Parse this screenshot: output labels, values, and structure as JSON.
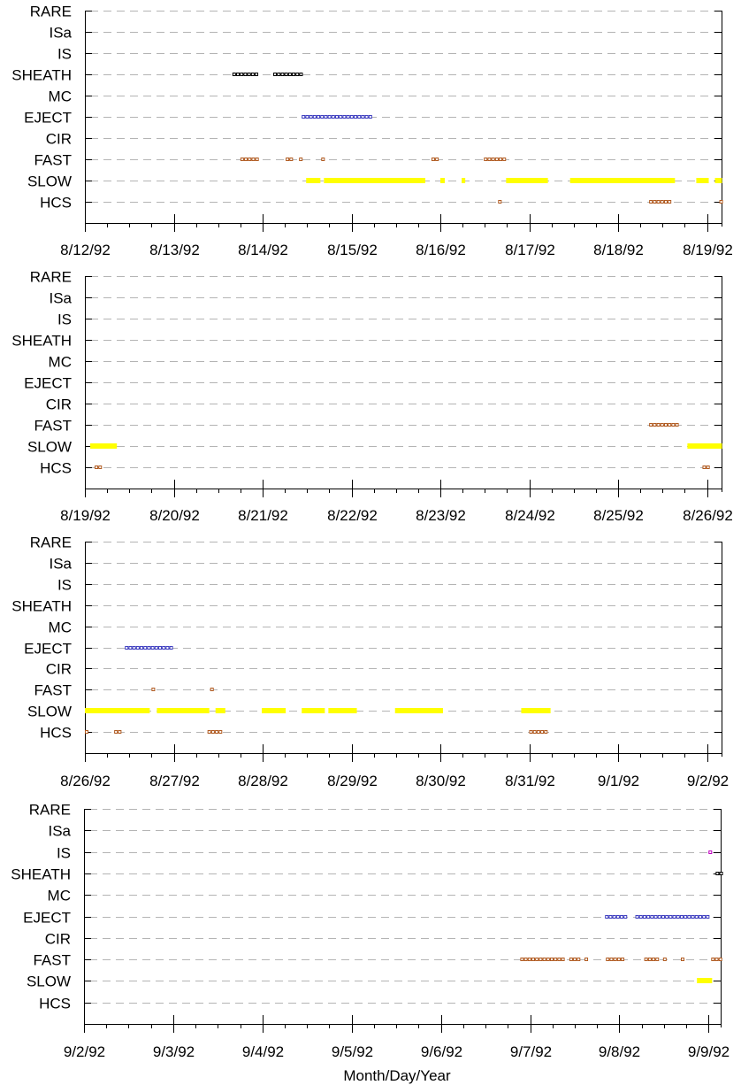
{
  "colors": {
    "sheath": "#000000",
    "eject": "#4040c0",
    "fast": "#b05a20",
    "slow": "#ffff00",
    "hcs": "#b05a20",
    "is": "#c000c0",
    "grid": "#b4b4b4",
    "axis": "#000000"
  },
  "chart_data": {
    "type": "timeline",
    "xlabel": "Month/Day/Year",
    "categories": [
      "RARE",
      "ISa",
      "IS",
      "SHEATH",
      "MC",
      "EJECT",
      "CIR",
      "FAST",
      "SLOW",
      "HCS"
    ],
    "panels": [
      {
        "x_range": [
          "1992-08-12",
          "1992-08-19"
        ],
        "tick_labels": [
          "8/12/92",
          "8/13/92",
          "8/14/92",
          "8/15/92",
          "8/16/92",
          "8/17/92",
          "8/18/92",
          "8/19/92"
        ],
        "intervals": [
          {
            "category": "SHEATH",
            "start": 1.66,
            "end": 1.96
          },
          {
            "category": "SHEATH",
            "start": 2.12,
            "end": 2.46
          },
          {
            "category": "EJECT",
            "start": 2.44,
            "end": 3.24
          },
          {
            "category": "FAST",
            "start": 1.75,
            "end": 1.95
          },
          {
            "category": "FAST",
            "start": 2.26,
            "end": 2.33
          },
          {
            "category": "FAST",
            "start": 2.41,
            "end": 2.45
          },
          {
            "category": "FAST",
            "start": 2.66,
            "end": 2.7
          },
          {
            "category": "FAST",
            "start": 3.9,
            "end": 3.99
          },
          {
            "category": "FAST",
            "start": 4.49,
            "end": 4.74
          },
          {
            "category": "SLOW",
            "start": 2.49,
            "end": 2.65
          },
          {
            "category": "SLOW",
            "start": 2.69,
            "end": 3.83
          },
          {
            "category": "SLOW",
            "start": 4.0,
            "end": 4.05
          },
          {
            "category": "SLOW",
            "start": 4.24,
            "end": 4.28
          },
          {
            "category": "SLOW",
            "start": 4.74,
            "end": 5.21
          },
          {
            "category": "SLOW",
            "start": 5.46,
            "end": 6.64
          },
          {
            "category": "SLOW",
            "start": 6.88,
            "end": 7.02
          },
          {
            "category": "SLOW",
            "start": 7.09,
            "end": 7.17
          },
          {
            "category": "HCS",
            "start": 4.65,
            "end": 4.69
          },
          {
            "category": "HCS",
            "start": 6.35,
            "end": 6.58
          },
          {
            "category": "HCS",
            "start": 7.14,
            "end": 7.17
          }
        ]
      },
      {
        "x_range": [
          "1992-08-19",
          "1992-08-26"
        ],
        "tick_labels": [
          "8/19/92",
          "8/20/92",
          "8/21/92",
          "8/22/92",
          "8/23/92",
          "8/24/92",
          "8/25/92",
          "8/26/92"
        ],
        "intervals": [
          {
            "category": "SLOW",
            "start": 0.06,
            "end": 0.36
          },
          {
            "category": "SLOW",
            "start": 6.78,
            "end": 7.17
          },
          {
            "category": "FAST",
            "start": 6.35,
            "end": 6.7
          },
          {
            "category": "HCS",
            "start": 0.11,
            "end": 0.18
          },
          {
            "category": "HCS",
            "start": 6.95,
            "end": 7.04
          }
        ]
      },
      {
        "x_range": [
          "1992-08-26",
          "1992-09-02"
        ],
        "tick_labels": [
          "8/26/92",
          "8/27/92",
          "8/28/92",
          "8/29/92",
          "8/30/92",
          "8/31/92",
          "9/1/92",
          "9/2/92"
        ],
        "intervals": [
          {
            "category": "EJECT",
            "start": 0.45,
            "end": 0.99
          },
          {
            "category": "FAST",
            "start": 0.75,
            "end": 0.78
          },
          {
            "category": "FAST",
            "start": 1.41,
            "end": 1.47
          },
          {
            "category": "SLOW",
            "start": 0.0,
            "end": 0.73
          },
          {
            "category": "SLOW",
            "start": 0.81,
            "end": 1.4
          },
          {
            "category": "SLOW",
            "start": 1.47,
            "end": 1.58
          },
          {
            "category": "SLOW",
            "start": 1.99,
            "end": 2.26
          },
          {
            "category": "SLOW",
            "start": 2.44,
            "end": 2.7
          },
          {
            "category": "SLOW",
            "start": 2.74,
            "end": 3.06
          },
          {
            "category": "SLOW",
            "start": 3.49,
            "end": 4.03
          },
          {
            "category": "SLOW",
            "start": 4.91,
            "end": 5.24
          },
          {
            "category": "HCS",
            "start": 0.0,
            "end": 0.02
          },
          {
            "category": "HCS",
            "start": 0.33,
            "end": 0.43
          },
          {
            "category": "HCS",
            "start": 1.38,
            "end": 1.53
          },
          {
            "category": "HCS",
            "start": 5.0,
            "end": 5.19
          }
        ]
      },
      {
        "x_range": [
          "1992-09-02",
          "1992-09-09"
        ],
        "tick_labels": [
          "9/2/92",
          "9/3/92",
          "9/4/92",
          "9/5/92",
          "9/6/92",
          "9/7/92",
          "9/8/92",
          "9/9/92"
        ],
        "intervals": [
          {
            "category": "IS",
            "start": 7.0,
            "end": 7.06
          },
          {
            "category": "SHEATH",
            "start": 7.08,
            "end": 7.15
          },
          {
            "category": "EJECT",
            "start": 5.84,
            "end": 6.1
          },
          {
            "category": "EJECT",
            "start": 6.18,
            "end": 7.0
          },
          {
            "category": "FAST",
            "start": 4.89,
            "end": 5.37
          },
          {
            "category": "FAST",
            "start": 5.44,
            "end": 5.55
          },
          {
            "category": "FAST",
            "start": 5.61,
            "end": 5.63
          },
          {
            "category": "FAST",
            "start": 5.85,
            "end": 6.05
          },
          {
            "category": "FAST",
            "start": 6.28,
            "end": 6.45
          },
          {
            "category": "FAST",
            "start": 6.49,
            "end": 6.52
          },
          {
            "category": "FAST",
            "start": 6.69,
            "end": 6.71
          },
          {
            "category": "FAST",
            "start": 7.03,
            "end": 7.15
          },
          {
            "category": "SLOW",
            "start": 6.87,
            "end": 7.04
          }
        ]
      }
    ]
  }
}
